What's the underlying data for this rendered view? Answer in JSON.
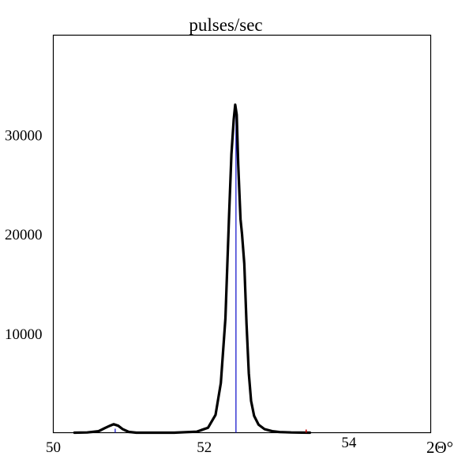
{
  "chart_data": {
    "type": "line",
    "title": "pulses/sec",
    "xlabel": "2Θ°",
    "ylabel": "",
    "xlim": [
      50,
      55
    ],
    "ylim": [
      0,
      40000
    ],
    "x_ticks": [
      "50",
      "52",
      "54"
    ],
    "x_tick_values": [
      50,
      52,
      54
    ],
    "y_ticks": [
      "10000",
      "20000",
      "30000"
    ],
    "y_tick_values": [
      10000,
      20000,
      30000
    ],
    "grid": false,
    "series": [
      {
        "color": "#000000",
        "x": [
          50.28,
          50.45,
          50.6,
          50.68,
          50.75,
          50.8,
          50.86,
          50.92,
          51.0,
          51.1,
          51.3,
          51.6,
          51.9,
          52.05,
          52.15,
          52.22,
          52.28,
          52.33,
          52.36,
          52.39,
          52.41,
          52.43,
          52.45,
          52.48,
          52.5,
          52.53,
          52.56,
          52.59,
          52.62,
          52.66,
          52.72,
          52.8,
          52.9,
          53.0,
          53.15,
          53.4
        ],
        "y": [
          0,
          20,
          150,
          450,
          700,
          850,
          700,
          350,
          80,
          0,
          0,
          0,
          100,
          500,
          1800,
          5000,
          11500,
          22000,
          28000,
          31500,
          33000,
          32000,
          27000,
          21500,
          20000,
          17000,
          11000,
          6000,
          3200,
          1700,
          800,
          350,
          150,
          60,
          20,
          0
        ]
      }
    ],
    "reference_lines": [
      {
        "color": "#1a1acc",
        "x": 52.42,
        "y": 32800
      },
      {
        "color": "#1a1acc",
        "x": 50.82,
        "y": 400
      }
    ],
    "marker": {
      "color": "#cc0000",
      "x": 53.35
    }
  }
}
